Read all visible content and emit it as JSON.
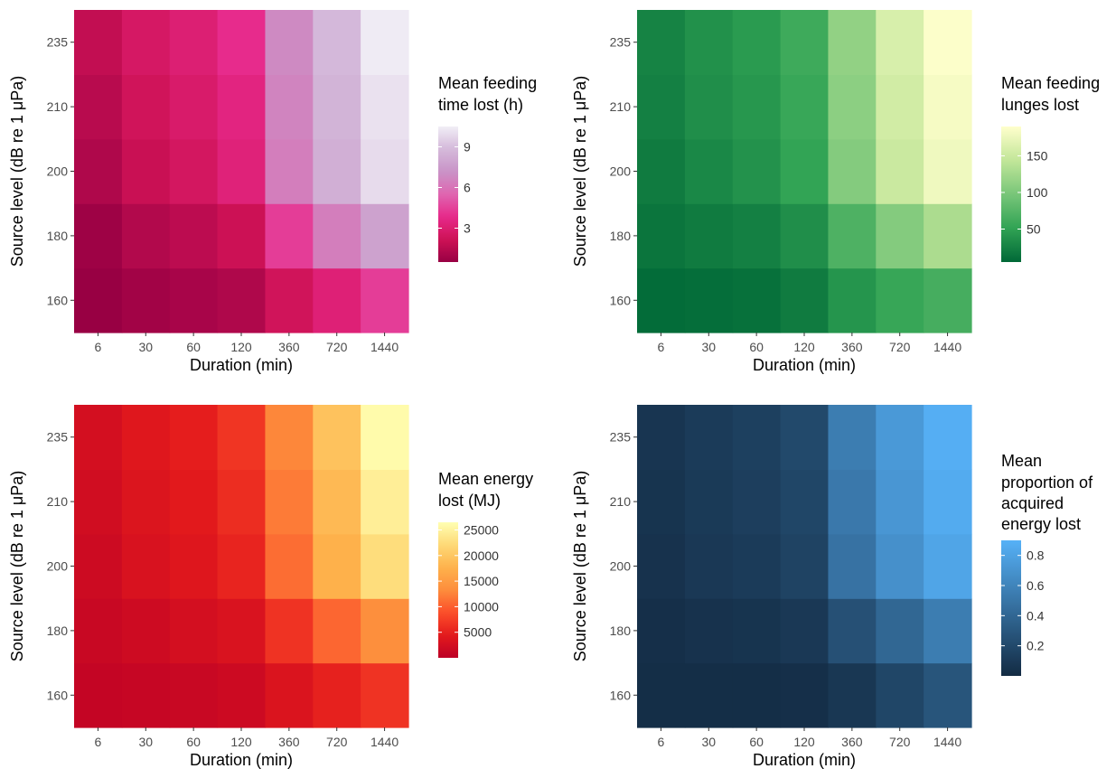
{
  "chart_data": [
    {
      "type": "heatmap",
      "xlabel": "Duration (min)",
      "ylabel": "Source level (dB re 1 μPa)",
      "x_categories": [
        "6",
        "30",
        "60",
        "120",
        "360",
        "720",
        "1440"
      ],
      "y_categories": [
        "160",
        "180",
        "200",
        "210",
        "235"
      ],
      "legend_title": [
        "Mean feeding",
        "time lost (h)"
      ],
      "legend_ticks": [
        3,
        6,
        9
      ],
      "colorscale": [
        "#980043",
        "#ce1256",
        "#e7298a",
        "#df65b0",
        "#c994c7",
        "#d4b9da",
        "#f1eef6"
      ],
      "range": [
        0.5,
        10.5
      ],
      "values": [
        [
          0.5,
          0.8,
          1.0,
          1.2,
          2.3,
          3.2,
          4.4
        ],
        [
          0.7,
          1.3,
          1.6,
          2.1,
          4.4,
          6.4,
          7.8
        ],
        [
          1.2,
          2.0,
          2.5,
          3.3,
          6.4,
          8.4,
          9.9
        ],
        [
          1.5,
          2.3,
          2.8,
          3.5,
          6.6,
          8.6,
          10.1
        ],
        [
          1.8,
          2.6,
          3.1,
          3.9,
          6.8,
          8.8,
          10.4
        ]
      ]
    },
    {
      "type": "heatmap",
      "xlabel": "Duration (min)",
      "ylabel": "Source level (dB re 1 μPa)",
      "x_categories": [
        "6",
        "30",
        "60",
        "120",
        "360",
        "720",
        "1440"
      ],
      "y_categories": [
        "160",
        "180",
        "200",
        "210",
        "235"
      ],
      "legend_title": [
        "Mean feeding",
        "lunges lost"
      ],
      "legend_ticks": [
        50,
        100,
        150
      ],
      "colorscale": [
        "#006837",
        "#31a354",
        "#78c679",
        "#c2e699",
        "#ffffcc"
      ],
      "range": [
        5,
        190
      ],
      "values": [
        [
          8,
          10,
          12,
          20,
          40,
          55,
          65
        ],
        [
          15,
          20,
          24,
          35,
          70,
          105,
          130
        ],
        [
          20,
          30,
          38,
          52,
          105,
          150,
          178
        ],
        [
          24,
          35,
          42,
          56,
          110,
          155,
          183
        ],
        [
          26,
          37,
          45,
          60,
          114,
          160,
          188
        ]
      ]
    },
    {
      "type": "heatmap",
      "xlabel": "Duration (min)",
      "ylabel": "Source level (dB re 1 μPa)",
      "x_categories": [
        "6",
        "30",
        "60",
        "120",
        "360",
        "720",
        "1440"
      ],
      "y_categories": [
        "160",
        "180",
        "200",
        "210",
        "235"
      ],
      "legend_title": [
        "Mean energy",
        "lost (MJ)"
      ],
      "legend_ticks": [
        5000,
        10000,
        15000,
        20000,
        25000
      ],
      "colorscale": [
        "#bd0026",
        "#e31a1c",
        "#fc4e2a",
        "#fd8d3c",
        "#feb24c",
        "#fed976",
        "#ffffb2"
      ],
      "range": [
        0,
        26500
      ],
      "values": [
        [
          800,
          1100,
          1300,
          1700,
          3400,
          5000,
          6500
        ],
        [
          1300,
          1900,
          2500,
          3300,
          6500,
          10500,
          13500
        ],
        [
          1800,
          3100,
          3800,
          5300,
          11000,
          17500,
          22500
        ],
        [
          2200,
          3500,
          4300,
          6000,
          12000,
          18500,
          24500
        ],
        [
          2600,
          3900,
          4700,
          6700,
          12800,
          19500,
          26000
        ]
      ]
    },
    {
      "type": "heatmap",
      "xlabel": "Duration (min)",
      "ylabel": "Source level (dB re 1 μPa)",
      "x_categories": [
        "6",
        "30",
        "60",
        "120",
        "360",
        "720",
        "1440"
      ],
      "y_categories": [
        "160",
        "180",
        "200",
        "210",
        "235"
      ],
      "legend_title": [
        "Mean",
        "proportion of",
        "acquired",
        "energy lost"
      ],
      "legend_ticks": [
        0.2,
        0.4,
        0.6,
        0.8
      ],
      "colorscale": [
        "#132b43",
        "#56b1f7"
      ],
      "range": [
        0.0,
        0.9
      ],
      "values": [
        [
          0.02,
          0.02,
          0.02,
          0.03,
          0.08,
          0.18,
          0.28
        ],
        [
          0.03,
          0.05,
          0.06,
          0.09,
          0.25,
          0.4,
          0.55
        ],
        [
          0.05,
          0.09,
          0.11,
          0.16,
          0.48,
          0.68,
          0.82
        ],
        [
          0.06,
          0.1,
          0.13,
          0.18,
          0.52,
          0.72,
          0.86
        ],
        [
          0.07,
          0.11,
          0.14,
          0.2,
          0.55,
          0.74,
          0.88
        ]
      ]
    }
  ]
}
